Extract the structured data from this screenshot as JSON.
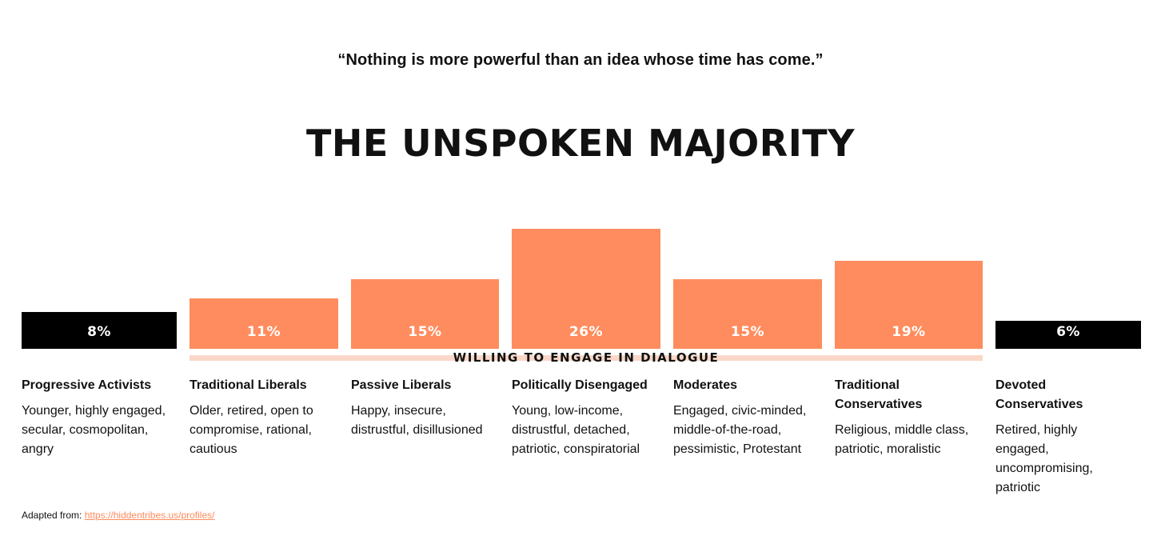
{
  "quote": "“Nothing is more powerful than an idea whose time has come.”",
  "title": "THE UNSPOKEN MAJORITY",
  "dialogue_label": "WILLING TO ENGAGE IN DIALOGUE",
  "source": {
    "prefix": "Adapted from: ",
    "link_text": "https://hiddentribes.us/profiles/"
  },
  "colors": {
    "accent": "#ff8c5e",
    "dark": "#000000",
    "band": "#fbd7c8",
    "link": "#ff8a5c"
  },
  "chart_data": {
    "type": "bar",
    "title": "THE UNSPOKEN MAJORITY",
    "categories": [
      "Progressive Activists",
      "Traditional Liberals",
      "Passive Liberals",
      "Politically Disengaged",
      "Moderates",
      "Traditional Conservatives",
      "Devoted Conservatives"
    ],
    "values": [
      8,
      11,
      15,
      26,
      15,
      19,
      6
    ],
    "value_labels": [
      "8%",
      "11%",
      "15%",
      "26%",
      "15%",
      "19%",
      "6%"
    ],
    "bar_colors": [
      "#000000",
      "#ff8c5e",
      "#ff8c5e",
      "#ff8c5e",
      "#ff8c5e",
      "#ff8c5e",
      "#000000"
    ],
    "unit": "%",
    "grid": false,
    "legend": "none"
  },
  "groups": [
    {
      "name": "Progressive Activists",
      "description": "Younger, highly engaged, secular, cosmopolitan, angry"
    },
    {
      "name": "Traditional Liberals",
      "description": "Older, retired, open to compromise, rational, cautious"
    },
    {
      "name": "Passive Liberals",
      "description": "Happy, insecure, distrustful, disillusioned"
    },
    {
      "name": "Politically Disengaged",
      "description": "Young, low-income, distrustful, detached, patriotic, conspiratorial"
    },
    {
      "name": "Moderates",
      "description": "Engaged, civic-minded, middle-of-the-road, pessimistic, Protestant"
    },
    {
      "name": "Traditional Conservatives",
      "description": "Religious, middle class, patriotic, moralistic"
    },
    {
      "name": "Devoted Conservatives",
      "description": "Retired, highly engaged, uncompromising, patriotic"
    }
  ]
}
